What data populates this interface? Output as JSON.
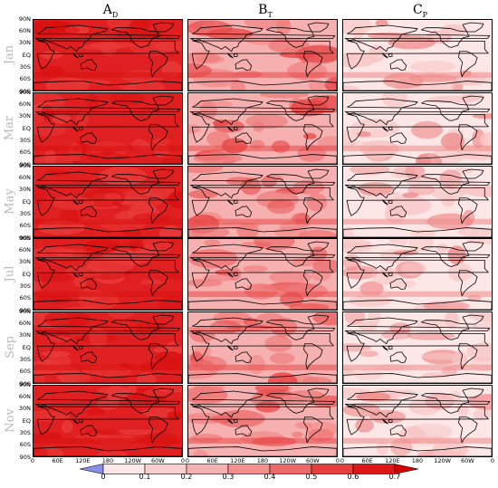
{
  "columns": [
    {
      "main": "A",
      "sub": "D",
      "theme": "high"
    },
    {
      "main": "B",
      "sub": "T",
      "theme": "mid"
    },
    {
      "main": "C",
      "sub": "P",
      "theme": "low"
    }
  ],
  "months": [
    "Jan",
    "Mar",
    "May",
    "Jul",
    "Sep",
    "Nov"
  ],
  "lat_ticks": [
    "90N",
    "60N",
    "30N",
    "EQ",
    "30S",
    "60S",
    "90S"
  ],
  "lon_ticks": [
    "0",
    "60E",
    "120E",
    "180",
    "120W",
    "60W",
    "0"
  ],
  "colorbar": {
    "labels": [
      "0",
      "0.1",
      "0.2",
      "0.3",
      "0.4",
      "0.5",
      "0.6",
      "0.7"
    ],
    "colors": [
      "#8b8fe6",
      "#fce8e8",
      "#f9cfcf",
      "#f6b2b2",
      "#f38f8f",
      "#ee6a6a",
      "#e73d3d",
      "#e01616",
      "#d40000"
    ]
  },
  "palette": {
    "high": [
      "#e02020",
      "#e93b3b",
      "#d81010"
    ],
    "mid": [
      "#f6b0b0",
      "#ef7a7a",
      "#e84848"
    ],
    "low": [
      "#fde6e6",
      "#f8c4c4",
      "#ef8a8a"
    ]
  }
}
